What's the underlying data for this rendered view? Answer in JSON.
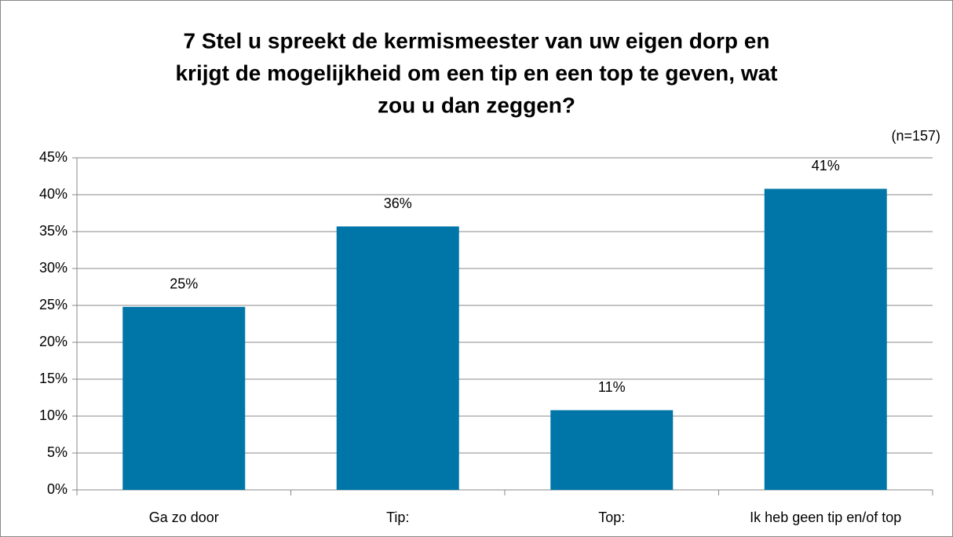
{
  "chart_data": {
    "type": "bar",
    "title": [
      "7 Stel u spreekt de kermismeester van uw eigen dorp en",
      "krijgt de mogelijkheid om een tip en een top te geven, wat",
      "zou u dan zeggen?"
    ],
    "annotation": "(n=157)",
    "categories": [
      "Ga zo door",
      "Tip:",
      "Top:",
      "Ik heb geen tip en/of top"
    ],
    "values": [
      24.8,
      35.7,
      10.8,
      40.8
    ],
    "value_labels": [
      "25%",
      "36%",
      "11%",
      "41%"
    ],
    "color": "#0076a8",
    "ylim": [
      0,
      45
    ],
    "yticks": [
      {
        "value": 0,
        "label": "0%"
      },
      {
        "value": 5,
        "label": "5%"
      },
      {
        "value": 10,
        "label": "10%"
      },
      {
        "value": 15,
        "label": "15%"
      },
      {
        "value": 20,
        "label": "20%"
      },
      {
        "value": 25,
        "label": "25%"
      },
      {
        "value": 30,
        "label": "30%"
      },
      {
        "value": 35,
        "label": "35%"
      },
      {
        "value": 40,
        "label": "40%"
      },
      {
        "value": 45,
        "label": "45%"
      }
    ],
    "grid": true
  }
}
